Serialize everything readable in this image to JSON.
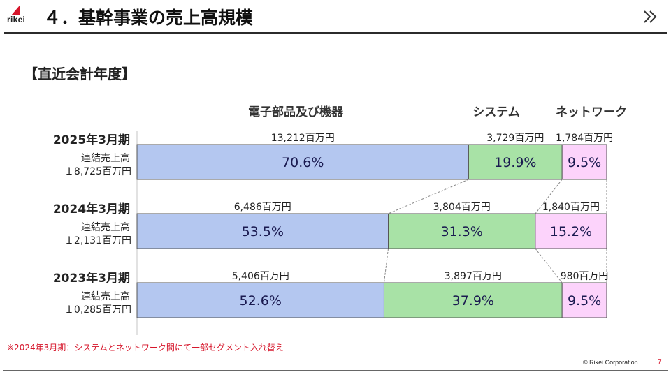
{
  "header": {
    "logo_text": "rikei",
    "title": "４．基幹事業の売上高規模",
    "brand_color": "#d6152a"
  },
  "section_heading": "【直近会計年度】",
  "footnote": "※2024年3月期：システムとネットワーク間にて一部セグメント入れ替え",
  "footer": {
    "copyright": "© Rikei Corporation",
    "page_number": "7"
  },
  "chart_data": {
    "type": "bar",
    "orientation": "horizontal",
    "stacked": true,
    "normalized": "percent",
    "categories": [
      "電子部品及び機器",
      "システム",
      "ネットワーク"
    ],
    "colors": [
      "#b4c7f0",
      "#a8e2a6",
      "#fcd3fb"
    ],
    "unit": "百万円",
    "rows": [
      {
        "period": "2025年3月期",
        "total_label": "連結売上高",
        "total_value": "１8,725百万円",
        "values": [
          13212,
          3729,
          1784
        ],
        "value_labels": [
          "13,212百万円",
          "3,729百万円",
          "1,784百万円"
        ],
        "percents": [
          70.6,
          19.9,
          9.5
        ],
        "percent_labels": [
          "70.6%",
          "19.9%",
          "9.5%"
        ]
      },
      {
        "period": "2024年3月期",
        "total_label": "連結売上高",
        "total_value": "１2,131百万円",
        "values": [
          6486,
          3804,
          1840
        ],
        "value_labels": [
          "6,486百万円",
          "3,804百万円",
          "1,840百万円"
        ],
        "percents": [
          53.5,
          31.3,
          15.2
        ],
        "percent_labels": [
          "53.5%",
          "31.3%",
          "15.2%"
        ]
      },
      {
        "period": "2023年3月期",
        "total_label": "連結売上高",
        "total_value": "１0,285百万円",
        "values": [
          5406,
          3897,
          980
        ],
        "value_labels": [
          "5,406百万円",
          "3,897百万円",
          "980百万円"
        ],
        "percents": [
          52.6,
          37.9,
          9.5
        ],
        "percent_labels": [
          "52.6%",
          "37.9%",
          "9.5%"
        ]
      }
    ]
  }
}
